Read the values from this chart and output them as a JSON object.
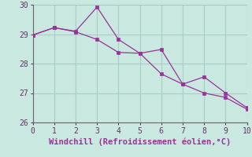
{
  "x": [
    0,
    1,
    2,
    3,
    4,
    5,
    6,
    7,
    8,
    9,
    10
  ],
  "line1_y": [
    28.97,
    29.22,
    29.1,
    29.92,
    28.82,
    28.35,
    28.48,
    27.3,
    27.55,
    27.0,
    26.5
  ],
  "line2_y": [
    28.97,
    29.22,
    29.08,
    28.82,
    28.38,
    28.35,
    27.65,
    27.3,
    27.0,
    26.85,
    26.45
  ],
  "line_color": "#993399",
  "bg_color": "#c8e8e0",
  "grid_color": "#a8ccc4",
  "xlabel": "Windchill (Refroidissement éolien,°C)",
  "xlabel_color": "#993399",
  "xlim": [
    0,
    10
  ],
  "ylim": [
    26.0,
    30.0
  ],
  "yticks": [
    26,
    27,
    28,
    29,
    30
  ],
  "xticks": [
    0,
    1,
    2,
    3,
    4,
    5,
    6,
    7,
    8,
    9,
    10
  ],
  "tick_fontsize": 7,
  "label_fontsize": 7.5
}
